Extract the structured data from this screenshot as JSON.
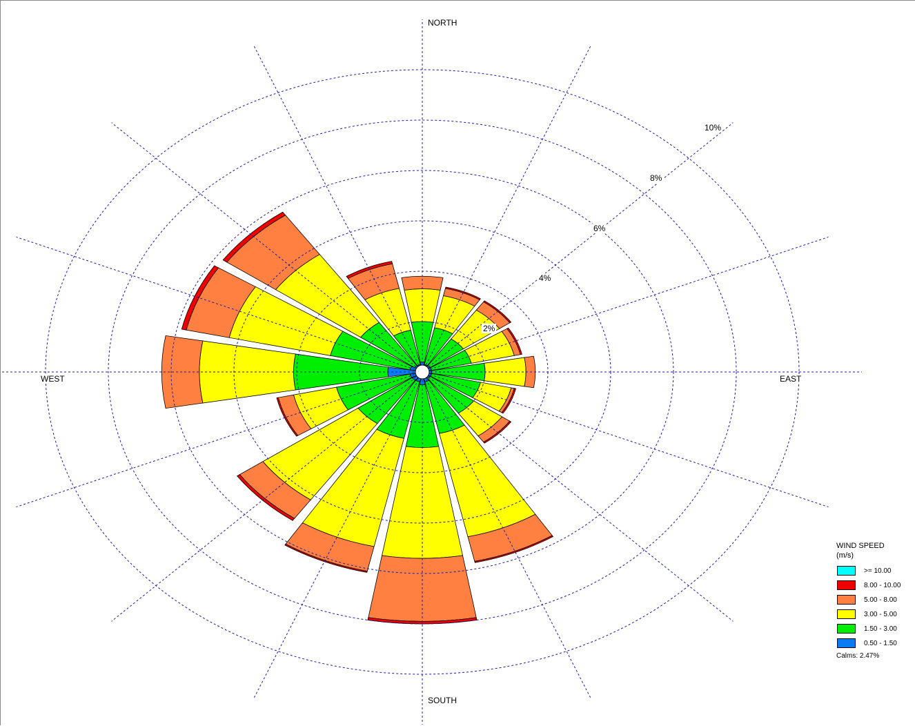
{
  "chart_data": {
    "type": "wind-rose",
    "directions": [
      "N",
      "NNE",
      "NE",
      "ENE",
      "E",
      "ESE",
      "SE",
      "SSE",
      "S",
      "SSW",
      "SW",
      "WSW",
      "W",
      "WNW",
      "NW",
      "NNW"
    ],
    "direction_labels": {
      "north": "NORTH",
      "east": "EAST",
      "south": "SOUTH",
      "west": "WEST"
    },
    "ring_values": [
      2,
      4,
      6,
      8,
      10
    ],
    "ring_labels": [
      "2%",
      "4%",
      "6%",
      "8%",
      "10%"
    ],
    "unit": "%",
    "series": [
      {
        "name": "0.50 - 1.50",
        "color": "#0a7bf0",
        "values": [
          0.4,
          0.3,
          0.3,
          0.3,
          0.3,
          0.3,
          0.3,
          0.4,
          0.5,
          0.4,
          0.4,
          0.4,
          1.1,
          0.4,
          0.3,
          0.3
        ]
      },
      {
        "name": "1.50 - 3.00",
        "color": "#00ee00",
        "values": [
          1.6,
          1.5,
          1.3,
          1.3,
          1.7,
          1.6,
          1.7,
          2.1,
          2.5,
          2.3,
          2.1,
          2.4,
          3.0,
          2.6,
          2.1,
          1.4
        ]
      },
      {
        "name": "3.00 - 5.00",
        "color": "#ffff00",
        "values": [
          1.3,
          1.3,
          1.4,
          1.4,
          1.3,
          1.0,
          1.1,
          4.2,
          4.4,
          4.4,
          3.7,
          1.4,
          3.0,
          3.3,
          3.3,
          1.7
        ]
      },
      {
        "name": "5.00 - 8.00",
        "color": "#ff8040",
        "values": [
          0.5,
          0.3,
          0.4,
          0.2,
          0.3,
          0.1,
          0.3,
          1.0,
          2.5,
          1.0,
          0.9,
          0.5,
          1.2,
          1.4,
          1.9,
          1.0
        ]
      },
      {
        "name": "8.00 - 10.00",
        "color": "#ee0000",
        "values": [
          0.0,
          0.05,
          0.05,
          0.05,
          0.0,
          0.05,
          0.05,
          0.05,
          0.1,
          0.05,
          0.1,
          0.05,
          0.0,
          0.15,
          0.15,
          0.1
        ]
      },
      {
        "name": ">= 10.00",
        "color": "#00ffff",
        "values": [
          0,
          0,
          0,
          0,
          0,
          0,
          0,
          0,
          0,
          0,
          0,
          0,
          0,
          0,
          0,
          0
        ]
      }
    ],
    "legend": {
      "title_line1": "WIND SPEED",
      "title_line2": "(m/s)",
      "placement": "bottom-right",
      "calms": "Calms: 2.47%"
    },
    "grid": true,
    "grid_color": "#1a1aa8"
  }
}
